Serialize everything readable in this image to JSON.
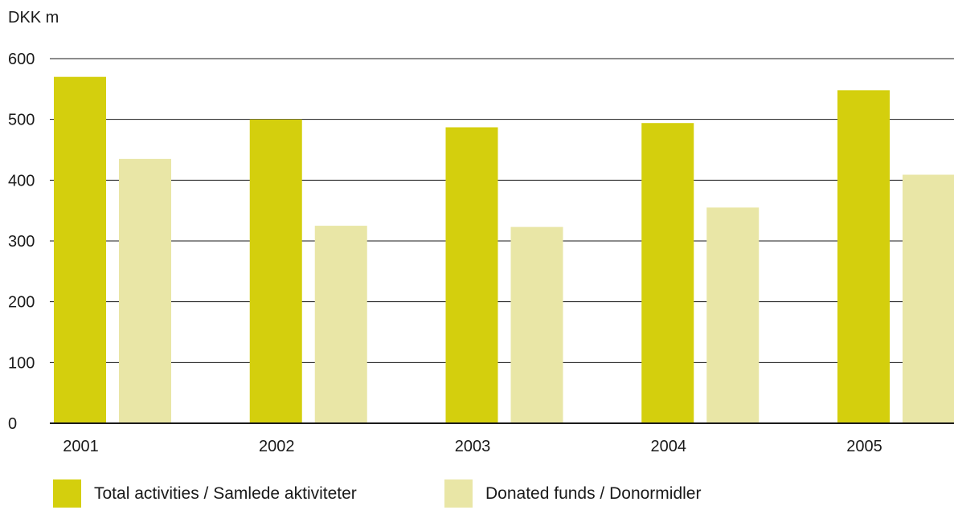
{
  "chart_data": {
    "type": "bar",
    "ylabel": "DKK m",
    "ylim": [
      0,
      600
    ],
    "yticks": [
      0,
      100,
      200,
      300,
      400,
      500,
      600
    ],
    "categories": [
      "2001",
      "2002",
      "2003",
      "2004",
      "2005"
    ],
    "grid": true,
    "legend_position": "bottom",
    "series": [
      {
        "name": "Total activities / Samlede aktiviteter",
        "color": "#d4cf0d",
        "values": [
          570,
          500,
          487,
          494,
          548
        ]
      },
      {
        "name": "Donated funds / Donormidler",
        "color": "#e9e6a6",
        "values": [
          435,
          325,
          323,
          355,
          409
        ]
      }
    ]
  }
}
